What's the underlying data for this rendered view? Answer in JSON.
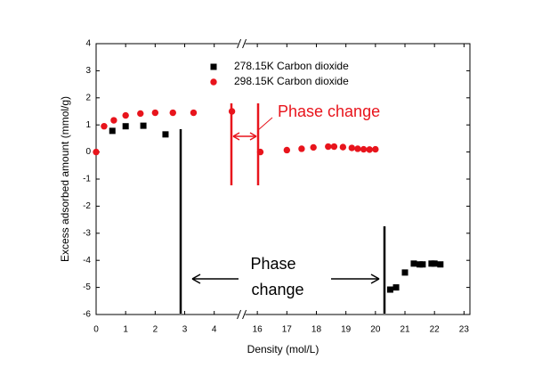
{
  "chart_data": {
    "type": "scatter",
    "xlabel": "Density (mol/L)",
    "ylabel": "Excess adsorbed amount (mmol/g)",
    "xlim": [
      [
        0,
        4.9
      ],
      [
        15.5,
        23.2
      ]
    ],
    "ylim": [
      -6,
      4
    ],
    "xticks": [
      0,
      1,
      2,
      3,
      4,
      16,
      17,
      18,
      19,
      20,
      21,
      22,
      23
    ],
    "yticks": [
      -6,
      -5,
      -4,
      -3,
      -2,
      -1,
      0,
      1,
      2,
      3,
      4
    ],
    "series": [
      {
        "name": "278.15K Carbon dioxide",
        "color": "#000000",
        "marker": "square",
        "x": [
          0.55,
          1.0,
          1.6,
          2.35,
          20.5,
          20.7,
          21.0,
          21.3,
          21.5,
          21.6,
          21.9,
          22.0,
          22.2
        ],
        "values": [
          0.78,
          0.95,
          0.97,
          0.65,
          -5.08,
          -5.0,
          -4.45,
          -4.12,
          -4.15,
          -4.15,
          -4.12,
          -4.12,
          -4.15
        ]
      },
      {
        "name": "298.15K Carbon dioxide",
        "color": "#e8141c",
        "marker": "circle",
        "x": [
          0,
          0.27,
          0.6,
          1.0,
          1.5,
          2.0,
          2.6,
          3.3,
          4.6,
          16.1,
          17.0,
          17.5,
          17.9,
          18.4,
          18.6,
          18.9,
          19.2,
          19.4,
          19.6,
          19.8,
          20.0
        ],
        "values": [
          0,
          0.95,
          1.17,
          1.35,
          1.42,
          1.45,
          1.45,
          1.45,
          1.5,
          0.0,
          0.07,
          0.12,
          0.17,
          0.2,
          0.2,
          0.18,
          0.15,
          0.12,
          0.1,
          0.09,
          0.1
        ]
      }
    ],
    "annotation_red": "Phase change",
    "annotation_black": [
      "Phase",
      "change"
    ]
  }
}
